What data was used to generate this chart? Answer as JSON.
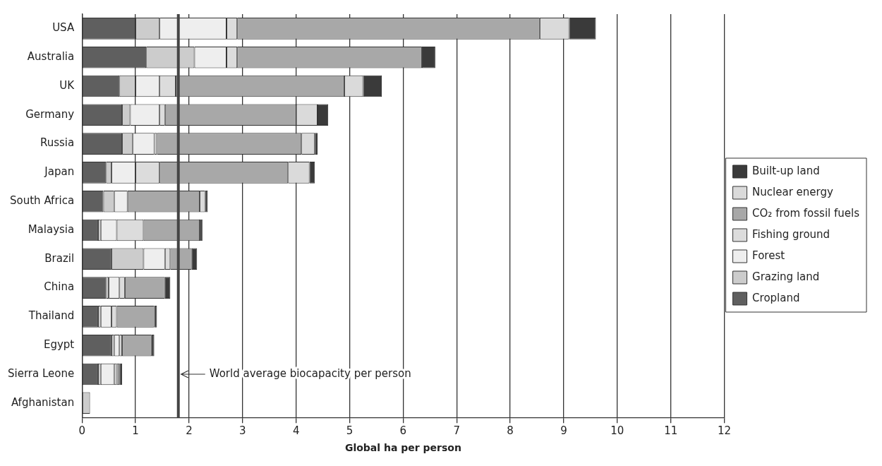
{
  "chart_data": {
    "type": "bar",
    "orientation": "horizontal",
    "stacked": true,
    "xlabel": "Global ha per person",
    "categories": [
      "USA",
      "Australia",
      "UK",
      "Germany",
      "Russia",
      "Japan",
      "South Africa",
      "Malaysia",
      "Brazil",
      "China",
      "Thailand",
      "Egypt",
      "Sierra Leone",
      "Afghanistan"
    ],
    "series": [
      {
        "name": "Cropland",
        "color": "#5f5f5f",
        "values": [
          1.0,
          1.2,
          0.7,
          0.75,
          0.75,
          0.45,
          0.4,
          0.3,
          0.55,
          0.45,
          0.3,
          0.55,
          0.3,
          null
        ]
      },
      {
        "name": "Grazing land",
        "color": "#cccccc",
        "values": [
          0.45,
          0.9,
          0.3,
          0.15,
          0.2,
          0.1,
          0.2,
          0.05,
          0.6,
          0.05,
          0.05,
          0.05,
          0.05,
          0.15
        ]
      },
      {
        "name": "Forest",
        "color": "#eeeeee",
        "values": [
          1.25,
          0.6,
          0.45,
          0.55,
          0.4,
          0.45,
          0.25,
          0.3,
          0.4,
          0.2,
          0.2,
          0.1,
          0.25,
          null
        ]
      },
      {
        "name": "Fishing ground",
        "color": "#dcdcdc",
        "values": [
          0.2,
          0.2,
          0.3,
          0.1,
          0.05,
          0.45,
          null,
          0.5,
          0.1,
          0.1,
          0.1,
          0.05,
          0.05,
          null
        ]
      },
      {
        "name": "CO₂ from fossil fuels",
        "color": "#a8a8a8",
        "values": [
          5.65,
          3.45,
          3.15,
          2.45,
          2.7,
          2.4,
          1.35,
          1.05,
          0.4,
          0.75,
          0.7,
          0.55,
          0.05,
          null
        ]
      },
      {
        "name": "Nuclear energy",
        "color": "#dadada",
        "values": [
          0.55,
          null,
          0.35,
          0.4,
          0.25,
          0.4,
          0.1,
          null,
          null,
          null,
          null,
          null,
          null,
          null
        ]
      },
      {
        "name": "Built-up land",
        "color": "#3a3a3a",
        "values": [
          0.5,
          0.25,
          0.35,
          0.2,
          0.05,
          0.1,
          0.05,
          0.05,
          0.1,
          0.1,
          0.05,
          0.05,
          0.05,
          null
        ]
      }
    ],
    "xlim": [
      0,
      12
    ],
    "xticks": [
      0,
      1,
      2,
      3,
      4,
      5,
      6,
      7,
      8,
      9,
      10,
      11,
      12
    ],
    "grid": "x",
    "legend": "right",
    "ref_lines": [
      {
        "axis": "x",
        "value": 1.8,
        "label": "World average biocapacity per person",
        "color": "#444444"
      }
    ]
  }
}
